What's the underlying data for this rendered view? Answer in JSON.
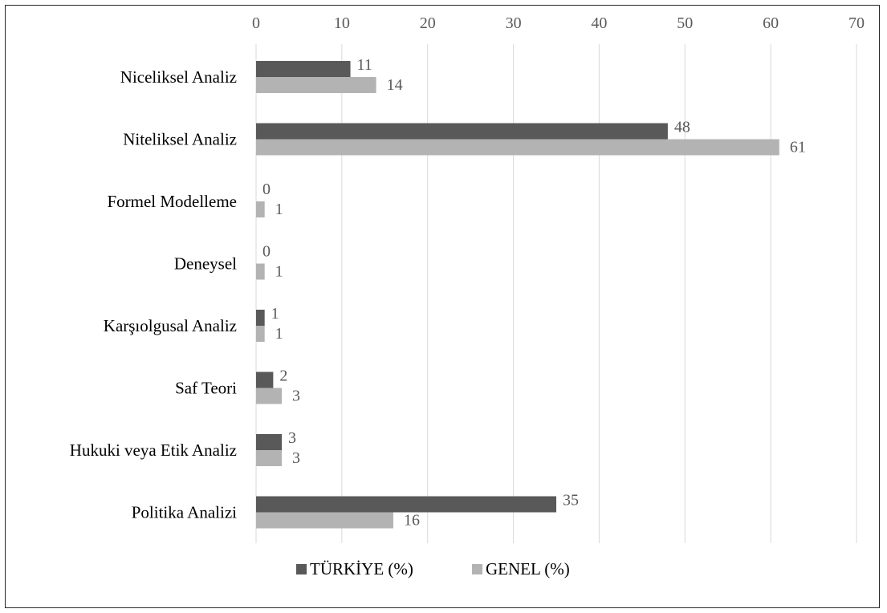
{
  "chart_data": {
    "type": "bar",
    "orientation": "horizontal",
    "xlim": [
      0,
      70
    ],
    "x_ticks": [
      "0",
      "10",
      "20",
      "30",
      "40",
      "50",
      "60",
      "70"
    ],
    "grid": true,
    "legend_position": "bottom",
    "categories": [
      "Niceliksel Analiz",
      "Niteliksel Analiz",
      "Formel Modelleme",
      "Deneysel",
      "Karşıolgusal Analiz",
      "Saf Teori",
      "Hukuki veya Etik Analiz",
      "Politika Analizi"
    ],
    "series": [
      {
        "name": "TÜRKİYE (%)",
        "color": "#595959",
        "values": [
          11,
          48,
          0,
          0,
          1,
          2,
          3,
          35
        ]
      },
      {
        "name": "GENEL (%)",
        "color": "#b3b3b3",
        "values": [
          14,
          61,
          1,
          1,
          1,
          3,
          3,
          16
        ]
      }
    ]
  }
}
